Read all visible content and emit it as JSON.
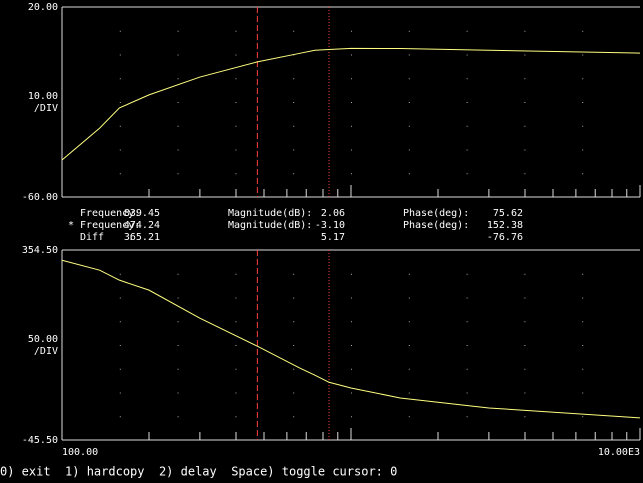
{
  "chart_data": [
    {
      "type": "line",
      "log_x": true,
      "xlim": [
        100,
        10000
      ],
      "ylim": [
        -60,
        20
      ],
      "yticks": [
        {
          "value": 20,
          "label": "20.00"
        },
        {
          "value": -60,
          "label": "-60.00"
        }
      ],
      "scale_label": "10.00",
      "scale_unit": "/DIV",
      "series": [
        {
          "color": "#ffff80",
          "x": [
            100,
            135,
            158,
            200,
            300,
            474.24,
            665,
            750,
            839.45,
            1000,
            1480,
            3000,
            10000
          ],
          "values": [
            -44.4,
            -31,
            -22.5,
            -17,
            -9.5,
            -3.1,
            0.5,
            1.8,
            2.1,
            2.6,
            2.5,
            1.8,
            0.6
          ]
        }
      ]
    },
    {
      "type": "line",
      "log_x": true,
      "xlim": [
        100,
        10000
      ],
      "xticks": [
        {
          "value": 100,
          "label": "100.00"
        },
        {
          "value": 10000,
          "label": "10.00E3"
        }
      ],
      "ylim": [
        -45.5,
        354.5
      ],
      "yticks": [
        {
          "value": 354.5,
          "label": "354.50"
        },
        {
          "value": -45.5,
          "label": "-45.50"
        }
      ],
      "scale_label": "50.00",
      "scale_unit": "/DIV",
      "series": [
        {
          "color": "#ffff80",
          "x": [
            100,
            135,
            158,
            200,
            300,
            474.24,
            665,
            750,
            839.45,
            1000,
            1480,
            3000,
            10000
          ],
          "values": [
            333,
            312,
            291,
            270,
            211,
            152,
            106,
            91,
            76,
            64,
            43,
            22,
            1
          ]
        }
      ]
    }
  ],
  "readout": {
    "rows": [
      {
        "label": "Frequency:",
        "frequency": "839.45",
        "mag_label": "Magnitude(dB):",
        "magnitude": "2.06",
        "phase_label": "Phase(deg):",
        "phase": "75.62",
        "style": "dotted"
      },
      {
        "label": "* Frequency:",
        "frequency": "474.24",
        "mag_label": "Magnitude(dB):",
        "magnitude": "-3.10",
        "phase_label": "Phase(deg):",
        "phase": "152.38",
        "style": "dashed"
      }
    ],
    "diff": {
      "label": "Diff    :",
      "frequency": "365.21",
      "magnitude": "5.17",
      "phase": "-76.76"
    }
  },
  "footer": "0) exit  1) hardcopy  2) delay  Space) toggle cursor: 0"
}
